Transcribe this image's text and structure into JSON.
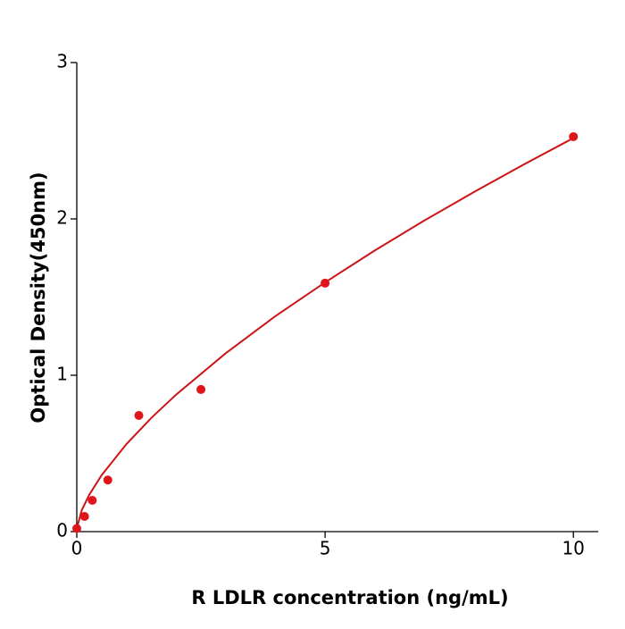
{
  "chart_data": {
    "type": "scatter",
    "xlabel": "R  LDLR concentration (ng/mL)",
    "ylabel": "Optical Density(450nm)",
    "x": [
      0,
      0.156,
      0.3125,
      0.625,
      1.25,
      2.5,
      5,
      10
    ],
    "values": [
      0.02,
      0.097,
      0.2,
      0.33,
      0.743,
      0.909,
      1.589,
      2.526
    ],
    "color": "#e0141b",
    "fit_curve": {
      "color": "#cc1417",
      "x": [
        0,
        0.1,
        0.25,
        0.5,
        1,
        1.5,
        2,
        3,
        4,
        5,
        6,
        7,
        8,
        9,
        10
      ],
      "values": [
        0.02,
        0.137,
        0.235,
        0.361,
        0.56,
        0.727,
        0.876,
        1.141,
        1.378,
        1.594,
        1.798,
        1.99,
        2.172,
        2.348,
        2.517
      ]
    },
    "xlim": [
      0,
      10.5
    ],
    "ylim": [
      0,
      3
    ],
    "xticks": [
      0,
      5,
      10
    ],
    "yticks": [
      0,
      1,
      2,
      3
    ]
  }
}
